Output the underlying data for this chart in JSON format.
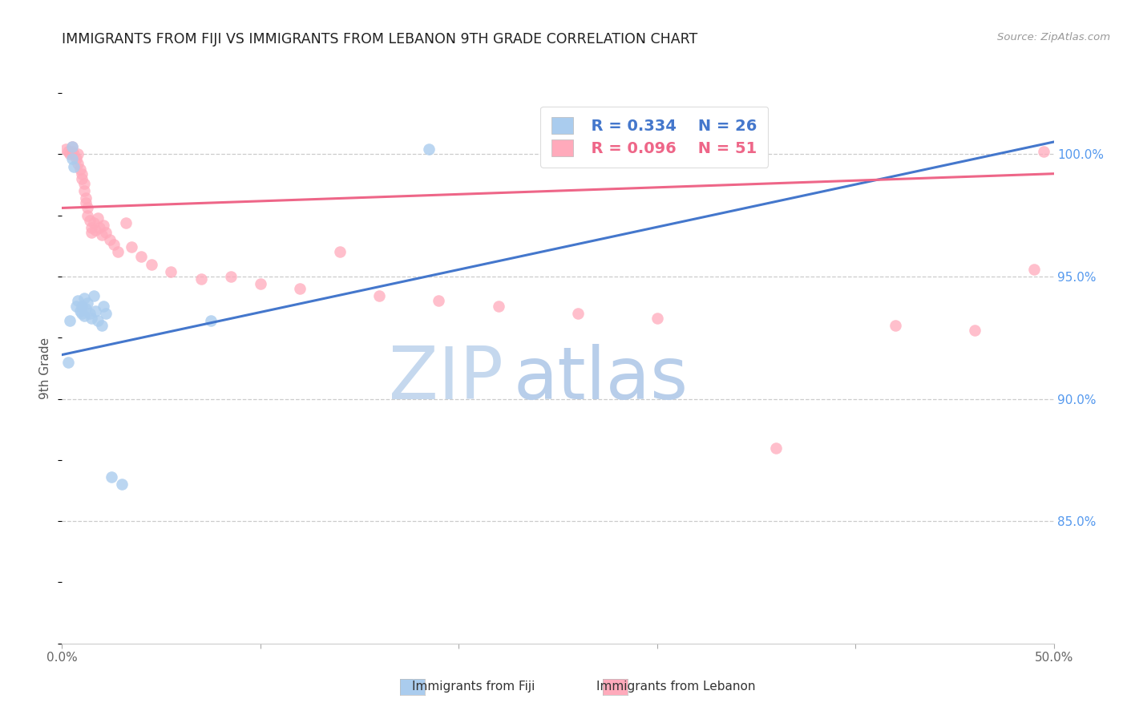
{
  "title": "IMMIGRANTS FROM FIJI VS IMMIGRANTS FROM LEBANON 9TH GRADE CORRELATION CHART",
  "source": "Source: ZipAtlas.com",
  "ylabel": "9th Grade",
  "xlim": [
    0.0,
    50.0
  ],
  "ylim": [
    80.0,
    102.5
  ],
  "yticks": [
    85.0,
    90.0,
    95.0,
    100.0
  ],
  "fiji_R": "0.334",
  "fiji_N": "26",
  "lebanon_R": "0.096",
  "lebanon_N": "51",
  "fiji_marker_color": "#AACCEE",
  "lebanon_marker_color": "#FFAABB",
  "fiji_line_color": "#4477CC",
  "lebanon_line_color": "#EE6688",
  "fiji_line_x0": 0.0,
  "fiji_line_y0": 91.8,
  "fiji_line_x1": 50.0,
  "fiji_line_y1": 100.5,
  "lebanon_line_x0": 0.0,
  "lebanon_line_y0": 97.8,
  "lebanon_line_x1": 50.0,
  "lebanon_line_y1": 99.2,
  "fiji_points_x": [
    0.3,
    0.4,
    0.5,
    0.5,
    0.6,
    0.7,
    0.8,
    0.9,
    1.0,
    1.0,
    1.1,
    1.1,
    1.2,
    1.3,
    1.4,
    1.5,
    1.6,
    1.7,
    1.8,
    2.0,
    2.1,
    2.2,
    2.5,
    3.0,
    7.5,
    18.5
  ],
  "fiji_points_y": [
    91.5,
    93.2,
    100.3,
    99.8,
    99.5,
    93.8,
    94.0,
    93.6,
    93.5,
    93.8,
    93.4,
    94.1,
    93.7,
    93.9,
    93.5,
    93.3,
    94.2,
    93.6,
    93.2,
    93.0,
    93.8,
    93.5,
    86.8,
    86.5,
    93.2,
    100.2
  ],
  "lebanon_points_x": [
    0.2,
    0.3,
    0.4,
    0.5,
    0.5,
    0.6,
    0.7,
    0.8,
    0.8,
    0.9,
    1.0,
    1.0,
    1.1,
    1.1,
    1.2,
    1.2,
    1.3,
    1.3,
    1.4,
    1.5,
    1.5,
    1.6,
    1.7,
    1.8,
    1.9,
    2.0,
    2.1,
    2.2,
    2.4,
    2.6,
    2.8,
    3.2,
    3.5,
    4.0,
    4.5,
    5.5,
    7.0,
    8.5,
    10.0,
    12.0,
    14.0,
    16.0,
    19.0,
    22.0,
    26.0,
    30.0,
    36.0,
    42.0,
    46.0,
    49.0,
    49.5
  ],
  "lebanon_points_y": [
    100.2,
    100.1,
    100.0,
    100.3,
    100.1,
    100.0,
    99.8,
    100.0,
    99.6,
    99.4,
    99.2,
    99.0,
    98.8,
    98.5,
    98.2,
    98.0,
    97.8,
    97.5,
    97.3,
    97.0,
    96.8,
    97.2,
    96.9,
    97.4,
    97.0,
    96.7,
    97.1,
    96.8,
    96.5,
    96.3,
    96.0,
    97.2,
    96.2,
    95.8,
    95.5,
    95.2,
    94.9,
    95.0,
    94.7,
    94.5,
    96.0,
    94.2,
    94.0,
    93.8,
    93.5,
    93.3,
    88.0,
    93.0,
    92.8,
    95.3,
    100.1
  ],
  "grid_color": "#CCCCCC",
  "bg_color": "#FFFFFF",
  "title_color": "#222222",
  "source_color": "#999999",
  "tick_color": "#666666",
  "right_tick_color": "#5599EE",
  "watermark_text_zip": "ZIP",
  "watermark_text_atlas": "atlas",
  "watermark_color_zip": "#C5D8EE",
  "watermark_color_atlas": "#B8CEEA"
}
